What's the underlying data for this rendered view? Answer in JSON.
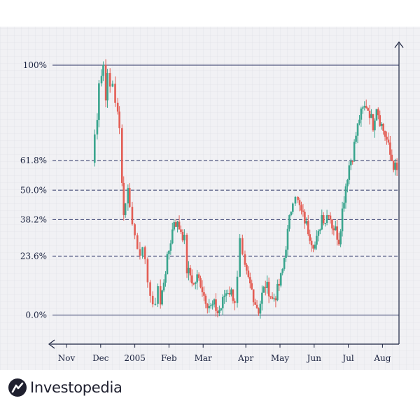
{
  "chart_data": {
    "type": "candlestick",
    "title": "",
    "xlabel": "",
    "ylabel": "",
    "grid": true,
    "legend": "none",
    "y_unit": "fibonacci retracement %",
    "ylim": [
      -10,
      112
    ],
    "x_ticks": [
      {
        "label": "Nov",
        "week": 1
      },
      {
        "label": "Dec",
        "week": 5
      },
      {
        "label": "2005",
        "week": 9
      },
      {
        "label": "Feb",
        "week": 13
      },
      {
        "label": "Mar",
        "week": 17
      },
      {
        "label": "Apr",
        "week": 22
      },
      {
        "label": "May",
        "week": 26
      },
      {
        "label": "Jun",
        "week": 30
      },
      {
        "label": "Jul",
        "week": 34
      },
      {
        "label": "Aug",
        "week": 38
      }
    ],
    "xlim": [
      0,
      40.5
    ],
    "fib_levels": [
      {
        "label": "100%",
        "value": 100,
        "style": "solid"
      },
      {
        "label": "61.8%",
        "value": 61.8,
        "style": "dashed"
      },
      {
        "label": "50.0%",
        "value": 50.0,
        "style": "dashed"
      },
      {
        "label": "38.2%",
        "value": 38.2,
        "style": "dashed"
      },
      {
        "label": "23.6%",
        "value": 23.6,
        "style": "dashed"
      },
      {
        "label": "0.0%",
        "value": 0,
        "style": "solid"
      }
    ],
    "price_path": [
      [
        4.0,
        61
      ],
      [
        4.3,
        72
      ],
      [
        4.6,
        80
      ],
      [
        4.8,
        94
      ],
      [
        5.1,
        96
      ],
      [
        5.3,
        100
      ],
      [
        5.6,
        88
      ],
      [
        5.8,
        95
      ],
      [
        6.1,
        91
      ],
      [
        6.4,
        93
      ],
      [
        6.7,
        86
      ],
      [
        7.0,
        80
      ],
      [
        7.2,
        74
      ],
      [
        7.5,
        55
      ],
      [
        7.7,
        40
      ],
      [
        7.9,
        46
      ],
      [
        8.2,
        50
      ],
      [
        8.4,
        45
      ],
      [
        8.7,
        36
      ],
      [
        9.0,
        32
      ],
      [
        9.3,
        28
      ],
      [
        9.6,
        26
      ],
      [
        9.9,
        25
      ],
      [
        10.2,
        20
      ],
      [
        10.5,
        15
      ],
      [
        10.8,
        8
      ],
      [
        11.1,
        2
      ],
      [
        11.4,
        6
      ],
      [
        11.7,
        12
      ],
      [
        12.0,
        4
      ],
      [
        12.4,
        14
      ],
      [
        12.8,
        22
      ],
      [
        13.2,
        30
      ],
      [
        13.6,
        38
      ],
      [
        14.0,
        36
      ],
      [
        14.4,
        34
      ],
      [
        14.8,
        30
      ],
      [
        15.1,
        18
      ],
      [
        15.5,
        16
      ],
      [
        15.9,
        12
      ],
      [
        16.3,
        15
      ],
      [
        16.7,
        13
      ],
      [
        17.1,
        8
      ],
      [
        17.5,
        5
      ],
      [
        17.9,
        3
      ],
      [
        18.3,
        4
      ],
      [
        18.7,
        1
      ],
      [
        19.1,
        3
      ],
      [
        19.5,
        8
      ],
      [
        19.9,
        10
      ],
      [
        20.3,
        9
      ],
      [
        20.7,
        6
      ],
      [
        21.0,
        14
      ],
      [
        21.3,
        29
      ],
      [
        21.6,
        22
      ],
      [
        21.9,
        18
      ],
      [
        22.3,
        14
      ],
      [
        22.7,
        10
      ],
      [
        23.1,
        5
      ],
      [
        23.5,
        2
      ],
      [
        23.9,
        8
      ],
      [
        24.3,
        12
      ],
      [
        24.7,
        10
      ],
      [
        25.1,
        6
      ],
      [
        25.5,
        8
      ],
      [
        25.9,
        12
      ],
      [
        26.3,
        18
      ],
      [
        26.7,
        28
      ],
      [
        27.1,
        38
      ],
      [
        27.5,
        47
      ],
      [
        27.8,
        49
      ],
      [
        28.1,
        45
      ],
      [
        28.5,
        41
      ],
      [
        28.9,
        38
      ],
      [
        29.3,
        34
      ],
      [
        29.7,
        30
      ],
      [
        30.1,
        28
      ],
      [
        30.5,
        32
      ],
      [
        30.9,
        40
      ],
      [
        31.3,
        38
      ],
      [
        31.7,
        42
      ],
      [
        32.1,
        36
      ],
      [
        32.5,
        34
      ],
      [
        32.9,
        30
      ],
      [
        33.3,
        42
      ],
      [
        33.7,
        52
      ],
      [
        34.1,
        60
      ],
      [
        34.5,
        64
      ],
      [
        34.9,
        72
      ],
      [
        35.3,
        79
      ],
      [
        35.7,
        82
      ],
      [
        36.1,
        84
      ],
      [
        36.5,
        81
      ],
      [
        36.9,
        76
      ],
      [
        37.3,
        84
      ],
      [
        37.7,
        78
      ],
      [
        38.1,
        74
      ],
      [
        38.5,
        70
      ],
      [
        38.9,
        64
      ],
      [
        39.3,
        60
      ],
      [
        39.7,
        58
      ]
    ],
    "annotations": []
  },
  "branding": {
    "logo_text": "Investopedia",
    "logo_icon": "investopedia-logo-icon"
  },
  "colors": {
    "up": "#3aa58e",
    "down": "#e35d54",
    "axis": "#1c2440",
    "level_line": "#2a3365",
    "grid": "#dcdde3",
    "plot_bg": "#f1f1f4"
  }
}
